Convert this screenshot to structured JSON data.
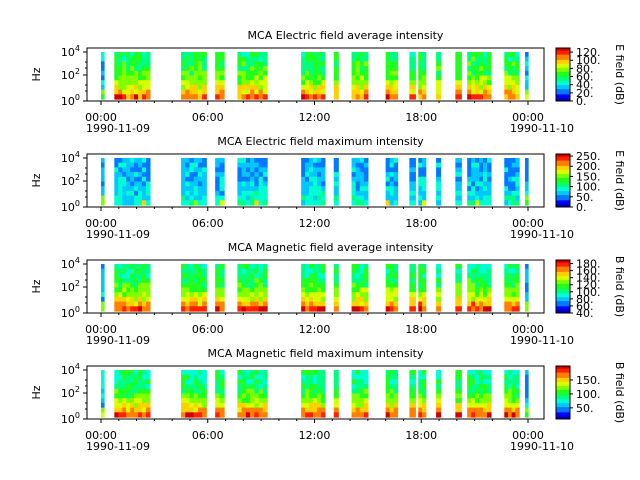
{
  "figure": {
    "date_start": "1990-11-09",
    "date_end": "1990-11-10"
  },
  "colormap": [
    "#0000b0",
    "#0000ff",
    "#0078ff",
    "#00c8ff",
    "#00ffd0",
    "#00ff80",
    "#20ff20",
    "#80ff00",
    "#d8ff00",
    "#ffd000",
    "#ff8000",
    "#ff2000",
    "#cc0000"
  ],
  "chart_data": [
    {
      "type": "heatmap",
      "title": "MCA  Electric field average intensity",
      "ylabel": "Hz",
      "yscale": "log",
      "yticks": [
        "10^0",
        "10^2",
        "10^4"
      ],
      "xticks": [
        "00:00",
        "06:00",
        "12:00",
        "18:00",
        "00:00"
      ],
      "colorbar": {
        "label": "E field (dB)",
        "ticks": [
          "0.",
          "20.",
          "40.",
          "60.",
          "80.",
          "100.",
          "120."
        ],
        "range": [
          0,
          130
        ]
      },
      "base_level": 0.45,
      "low_freq_peak": 0.85,
      "data_intervals": [
        [
          "00:00",
          "00:05"
        ],
        [
          "00:45",
          "02:45"
        ],
        [
          "04:30",
          "05:55"
        ],
        [
          "06:25",
          "06:55"
        ],
        [
          "07:40",
          "09:20"
        ],
        [
          "11:15",
          "12:35"
        ],
        [
          "13:05",
          "13:20"
        ],
        [
          "14:05",
          "15:00"
        ],
        [
          "16:00",
          "16:40"
        ],
        [
          "17:20",
          "17:40"
        ],
        [
          "17:50",
          "18:15"
        ],
        [
          "18:50",
          "19:05"
        ],
        [
          "19:55",
          "20:15"
        ],
        [
          "20:35",
          "21:55"
        ],
        [
          "22:40",
          "23:30"
        ],
        [
          "23:50",
          "23:55"
        ]
      ]
    },
    {
      "type": "heatmap",
      "title": "MCA  Electric field maximum intensity",
      "ylabel": "Hz",
      "yscale": "log",
      "yticks": [
        "10^0",
        "10^2",
        "10^4"
      ],
      "xticks": [
        "00:00",
        "06:00",
        "12:00",
        "18:00",
        "00:00"
      ],
      "colorbar": {
        "label": "E field (dB)",
        "ticks": [
          "0.",
          "50.",
          "100.",
          "150.",
          "200.",
          "250."
        ],
        "range": [
          0,
          260
        ]
      },
      "base_level": 0.22,
      "low_freq_peak": 0.35,
      "data_intervals": [
        [
          "00:00",
          "00:05"
        ],
        [
          "00:45",
          "02:45"
        ],
        [
          "04:30",
          "05:55"
        ],
        [
          "06:25",
          "06:55"
        ],
        [
          "07:40",
          "09:20"
        ],
        [
          "11:15",
          "12:35"
        ],
        [
          "13:05",
          "13:20"
        ],
        [
          "14:05",
          "15:00"
        ],
        [
          "16:00",
          "16:40"
        ],
        [
          "17:20",
          "17:40"
        ],
        [
          "17:50",
          "18:15"
        ],
        [
          "18:50",
          "19:05"
        ],
        [
          "19:55",
          "20:15"
        ],
        [
          "20:35",
          "21:55"
        ],
        [
          "22:40",
          "23:30"
        ],
        [
          "23:50",
          "23:55"
        ]
      ]
    },
    {
      "type": "heatmap",
      "title": "MCA  Magnetic field average intensity",
      "ylabel": "Hz",
      "yscale": "log",
      "yticks": [
        "10^0",
        "10^2",
        "10^4"
      ],
      "xticks": [
        "00:00",
        "06:00",
        "12:00",
        "18:00",
        "00:00"
      ],
      "colorbar": {
        "label": "B field (dB)",
        "ticks": [
          "40.",
          "60.",
          "80.",
          "100.",
          "120.",
          "140.",
          "160.",
          "180."
        ],
        "range": [
          40,
          190
        ]
      },
      "base_level": 0.42,
      "low_freq_peak": 0.9,
      "data_intervals": [
        [
          "00:00",
          "00:05"
        ],
        [
          "00:45",
          "02:45"
        ],
        [
          "04:30",
          "05:55"
        ],
        [
          "06:25",
          "06:55"
        ],
        [
          "07:40",
          "09:20"
        ],
        [
          "11:15",
          "12:35"
        ],
        [
          "13:05",
          "13:20"
        ],
        [
          "14:05",
          "15:00"
        ],
        [
          "16:00",
          "16:40"
        ],
        [
          "17:20",
          "17:40"
        ],
        [
          "17:50",
          "18:15"
        ],
        [
          "18:50",
          "19:05"
        ],
        [
          "19:55",
          "20:15"
        ],
        [
          "20:35",
          "21:55"
        ],
        [
          "22:40",
          "23:30"
        ],
        [
          "23:50",
          "23:55"
        ]
      ]
    },
    {
      "type": "heatmap",
      "title": "MCA  Magnetic field maximum intensity",
      "ylabel": "Hz",
      "yscale": "log",
      "yticks": [
        "10^0",
        "10^2",
        "10^4"
      ],
      "xticks": [
        "00:00",
        "06:00",
        "12:00",
        "18:00",
        "00:00"
      ],
      "colorbar": {
        "label": "B field (dB)",
        "ticks": [
          "50.",
          "100.",
          "150."
        ],
        "range": [
          10,
          200
        ]
      },
      "base_level": 0.4,
      "low_freq_peak": 0.9,
      "data_intervals": [
        [
          "00:00",
          "00:05"
        ],
        [
          "00:45",
          "02:45"
        ],
        [
          "04:30",
          "05:55"
        ],
        [
          "06:25",
          "06:55"
        ],
        [
          "07:40",
          "09:20"
        ],
        [
          "11:15",
          "12:35"
        ],
        [
          "13:05",
          "13:20"
        ],
        [
          "14:05",
          "15:00"
        ],
        [
          "16:00",
          "16:40"
        ],
        [
          "17:20",
          "17:40"
        ],
        [
          "17:50",
          "18:15"
        ],
        [
          "18:50",
          "19:05"
        ],
        [
          "19:55",
          "20:15"
        ],
        [
          "20:35",
          "21:55"
        ],
        [
          "22:40",
          "23:30"
        ],
        [
          "23:50",
          "23:55"
        ]
      ]
    }
  ]
}
